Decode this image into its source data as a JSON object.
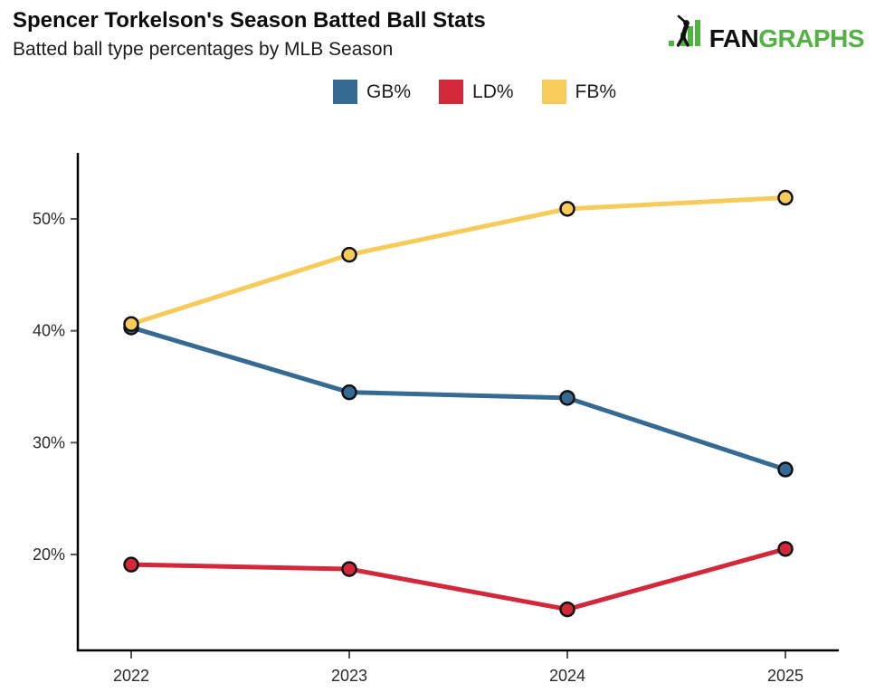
{
  "header": {
    "title": "Spencer Torkelson's Season Batted Ball Stats",
    "subtitle": "Batted ball type percentages by MLB Season"
  },
  "logo": {
    "fan": "FAN",
    "graphs": "GRAPHS",
    "green": "#52B244",
    "black": "#111111"
  },
  "legend": [
    {
      "label": "GB%",
      "color": "#356A93"
    },
    {
      "label": "LD%",
      "color": "#D2283A"
    },
    {
      "label": "FB%",
      "color": "#F7CB5A"
    }
  ],
  "chart_data": {
    "type": "line",
    "title": "Spencer Torkelson's Season Batted Ball Stats",
    "subtitle": "Batted ball type percentages by MLB Season",
    "categories": [
      "2022",
      "2023",
      "2024",
      "2025"
    ],
    "series": [
      {
        "name": "GB%",
        "color": "#356A93",
        "values": [
          40.3,
          34.5,
          34.0,
          27.6
        ]
      },
      {
        "name": "LD%",
        "color": "#D2283A",
        "values": [
          19.1,
          18.7,
          15.1,
          20.5
        ]
      },
      {
        "name": "FB%",
        "color": "#F7CB5A",
        "values": [
          40.6,
          46.8,
          50.9,
          51.9
        ]
      }
    ],
    "y_ticks": [
      20,
      30,
      40,
      50
    ],
    "y_tick_labels": [
      "20%",
      "30%",
      "40%",
      "50%"
    ],
    "ylim": [
      11.4,
      55.9
    ],
    "xlabel": "",
    "ylabel": "",
    "grid": false,
    "legend_position": "top-center",
    "marker": "circle-black-outline",
    "axis_color": "#000000",
    "tick_color": "#555555",
    "tick_label_color": "#2b2b2b"
  }
}
